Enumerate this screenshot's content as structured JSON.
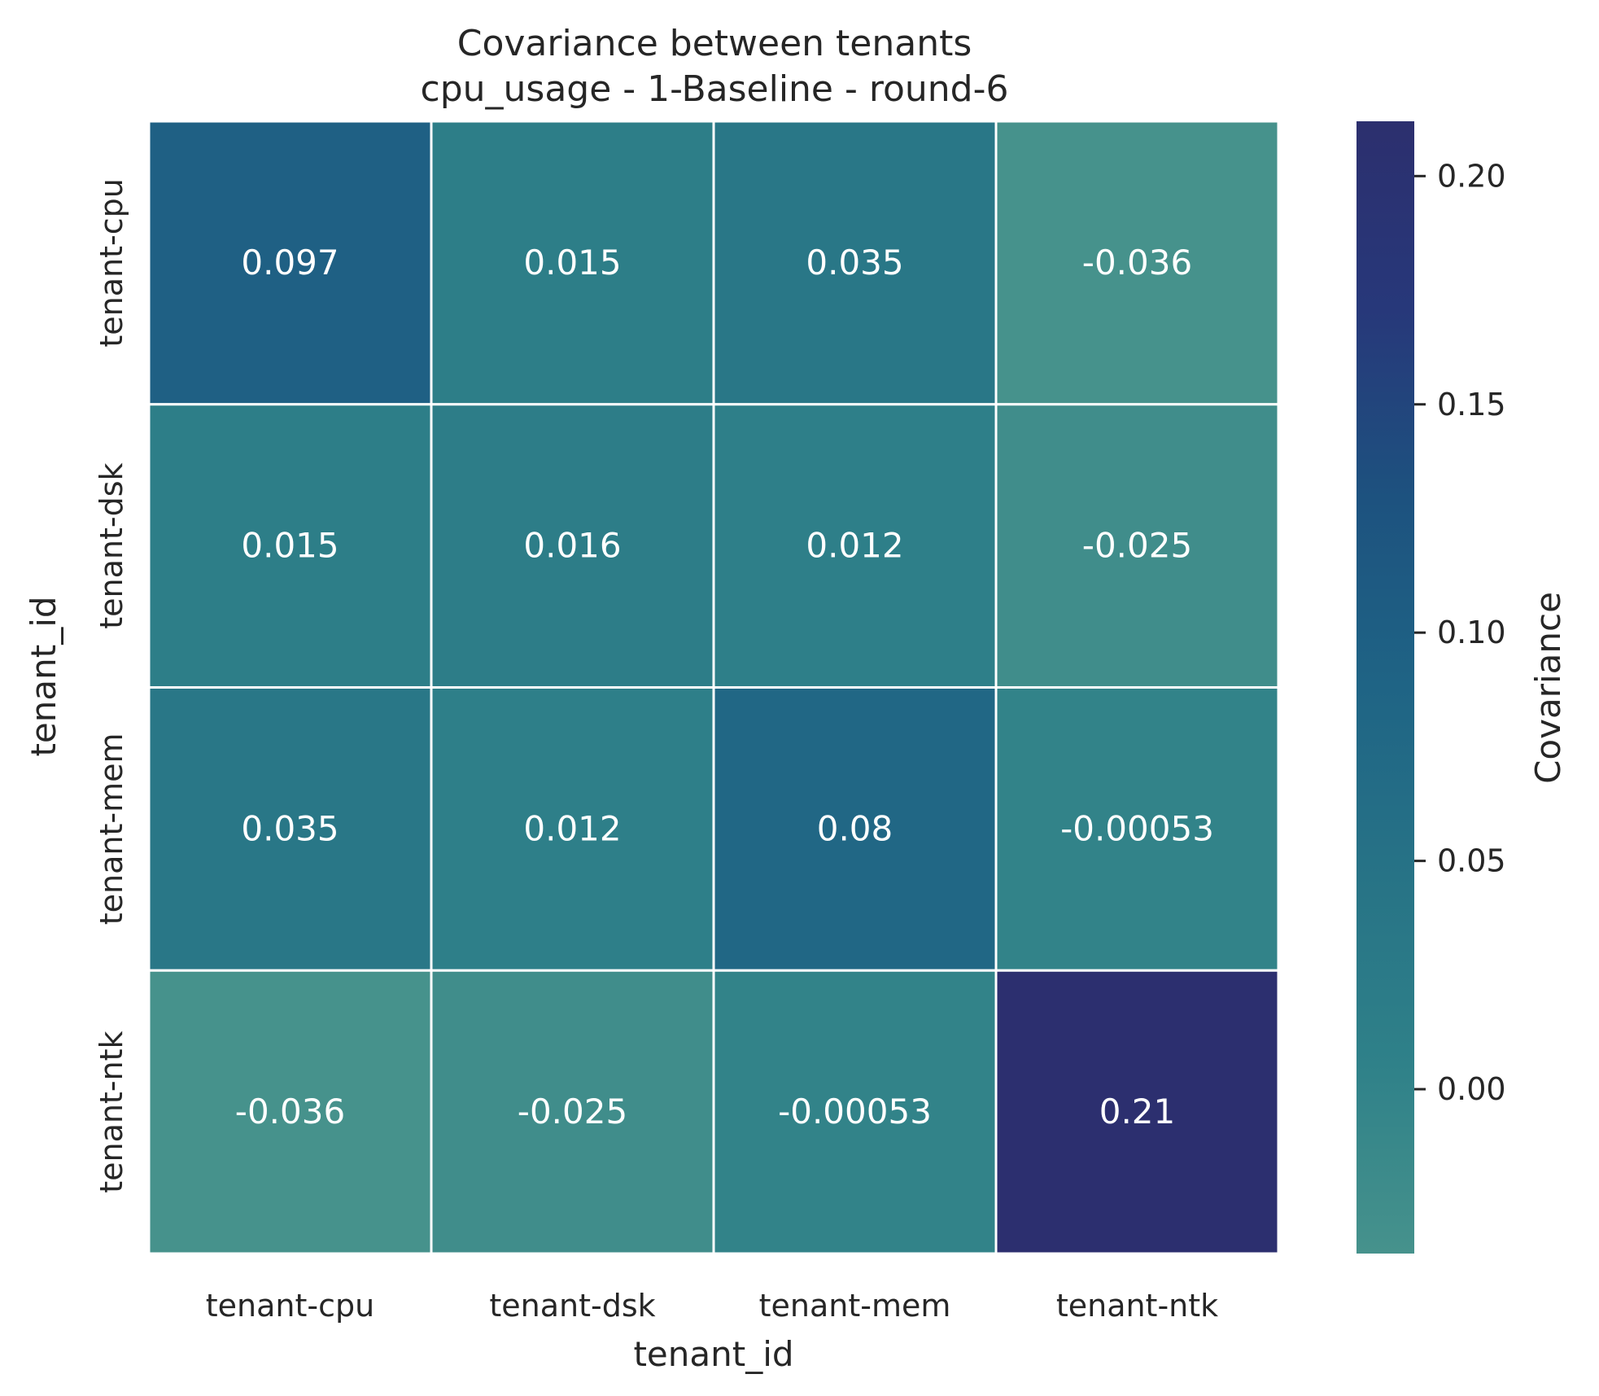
{
  "chart_data": {
    "type": "heatmap",
    "title": "Covariance between tenants",
    "subtitle": "cpu_usage - 1-Baseline - round-6",
    "xlabel": "tenant_id",
    "ylabel": "tenant_id",
    "x_categories": [
      "tenant-cpu",
      "tenant-dsk",
      "tenant-mem",
      "tenant-ntk"
    ],
    "y_categories": [
      "tenant-cpu",
      "tenant-dsk",
      "tenant-mem",
      "tenant-ntk"
    ],
    "values": [
      [
        0.097,
        0.015,
        0.035,
        -0.036
      ],
      [
        0.015,
        0.016,
        0.012,
        -0.025
      ],
      [
        0.035,
        0.012,
        0.08,
        -0.00053
      ],
      [
        -0.036,
        -0.025,
        -0.00053,
        0.21
      ]
    ],
    "cell_labels": [
      [
        "0.097",
        "0.015",
        "0.035",
        "-0.036"
      ],
      [
        "0.015",
        "0.016",
        "0.012",
        "-0.025"
      ],
      [
        "0.035",
        "0.012",
        "0.08",
        "-0.00053"
      ],
      [
        "-0.036",
        "-0.025",
        "-0.00053",
        "0.21"
      ]
    ],
    "colorbar": {
      "label": "Covariance",
      "vmin": -0.036,
      "vmax": 0.212,
      "ticks": [
        0.0,
        0.05,
        0.1,
        0.15,
        0.2
      ],
      "tick_labels": [
        "0.00",
        "0.05",
        "0.10",
        "0.15",
        "0.20"
      ],
      "colors": [
        "#46928c",
        "#2f8189",
        "#277386",
        "#1f6485",
        "#1d527f",
        "#27387a",
        "#2c2f6e"
      ]
    },
    "grid": false
  }
}
